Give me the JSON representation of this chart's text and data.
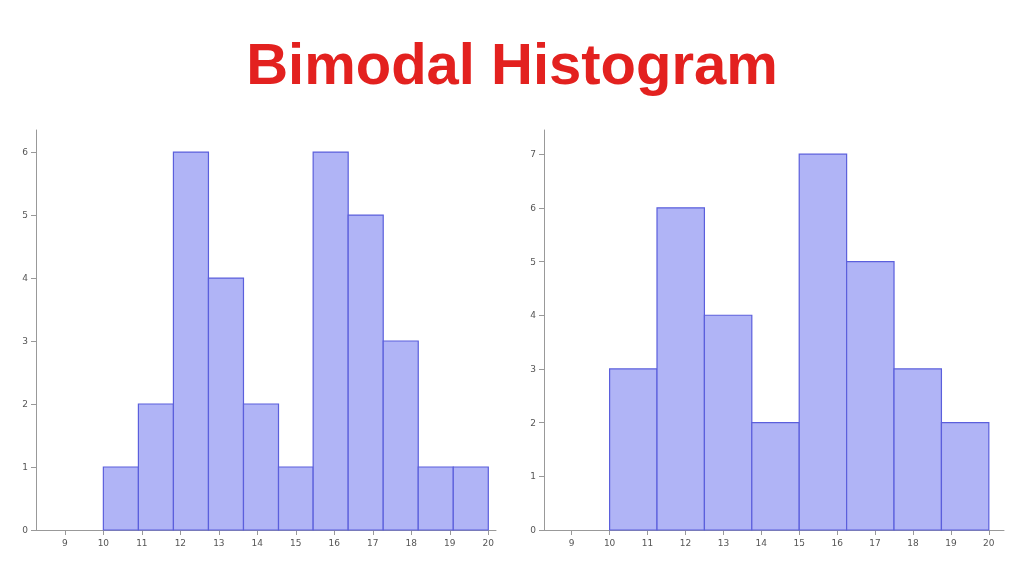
{
  "chart_data": [
    {
      "type": "histogram",
      "title": "Bimodal Histogram",
      "bins": [
        10,
        10.91,
        11.82,
        12.73,
        13.64,
        14.55,
        15.45,
        16.36,
        17.27,
        18.18,
        19.09,
        20
      ],
      "values": [
        1,
        2,
        6,
        4,
        2,
        1,
        6,
        5,
        3,
        1,
        1
      ],
      "color": "#b0b4f6",
      "xlim": [
        8.25,
        20.2
      ],
      "xticks": [
        9,
        10,
        11,
        12,
        13,
        14,
        15,
        16,
        17,
        18,
        19,
        20
      ],
      "ylim": [
        0,
        6.35
      ],
      "yticks": [
        0,
        1,
        2,
        3,
        4,
        5,
        6
      ],
      "grid": false
    },
    {
      "type": "histogram",
      "bins": [
        10,
        11.25,
        12.5,
        13.75,
        15,
        16.25,
        17.5,
        18.75,
        20
      ],
      "values": [
        3,
        6,
        4,
        2,
        7,
        5,
        3,
        2
      ],
      "color": "#b0b4f6",
      "xlim": [
        8.27,
        20.4
      ],
      "xticks": [
        9,
        10,
        11,
        12,
        13,
        14,
        15,
        16,
        17,
        18,
        19,
        20
      ],
      "ylim": [
        0,
        7.45
      ],
      "yticks": [
        0,
        1,
        2,
        3,
        4,
        5,
        6,
        7
      ],
      "grid": false
    }
  ]
}
